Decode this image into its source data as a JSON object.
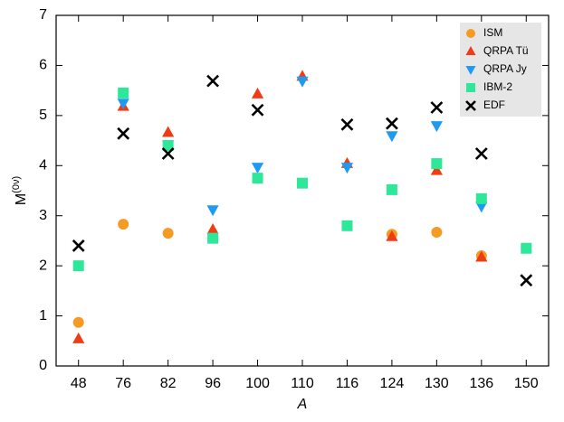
{
  "chart_data": {
    "type": "scatter",
    "xlabel": "A",
    "ylabel": [
      "M",
      "(0ν)"
    ],
    "categories": [
      "48",
      "76",
      "82",
      "96",
      "100",
      "110",
      "116",
      "124",
      "130",
      "136",
      "150"
    ],
    "ylim": [
      0,
      7
    ],
    "yticks": [
      0,
      1,
      2,
      3,
      4,
      5,
      6,
      7
    ],
    "legend": "upper right",
    "series": [
      {
        "name": "ISM",
        "color": "#f59a23",
        "marker": "circle",
        "values": [
          0.87,
          2.83,
          2.65,
          null,
          null,
          null,
          null,
          2.63,
          2.67,
          2.2,
          null
        ]
      },
      {
        "name": "QRPA Tü",
        "color": "#f03c14",
        "marker": "triangle-up",
        "values": [
          0.54,
          5.18,
          4.66,
          2.72,
          5.43,
          5.78,
          4.04,
          2.58,
          3.9,
          2.17,
          null
        ]
      },
      {
        "name": "QRPA Jy",
        "color": "#1e9bf0",
        "marker": "triangle-down",
        "values": [
          null,
          5.25,
          4.42,
          3.12,
          3.97,
          5.69,
          3.97,
          4.6,
          4.8,
          3.19,
          null
        ]
      },
      {
        "name": "IBM-2",
        "color": "#2de898",
        "marker": "square",
        "values": [
          2.0,
          5.45,
          4.4,
          2.55,
          3.75,
          3.65,
          2.8,
          3.52,
          4.04,
          3.34,
          2.35
        ]
      },
      {
        "name": "EDF",
        "color": "#000000",
        "marker": "x",
        "values": [
          2.4,
          4.64,
          4.24,
          5.69,
          5.11,
          null,
          4.82,
          4.84,
          5.16,
          4.24,
          1.71
        ]
      }
    ]
  }
}
